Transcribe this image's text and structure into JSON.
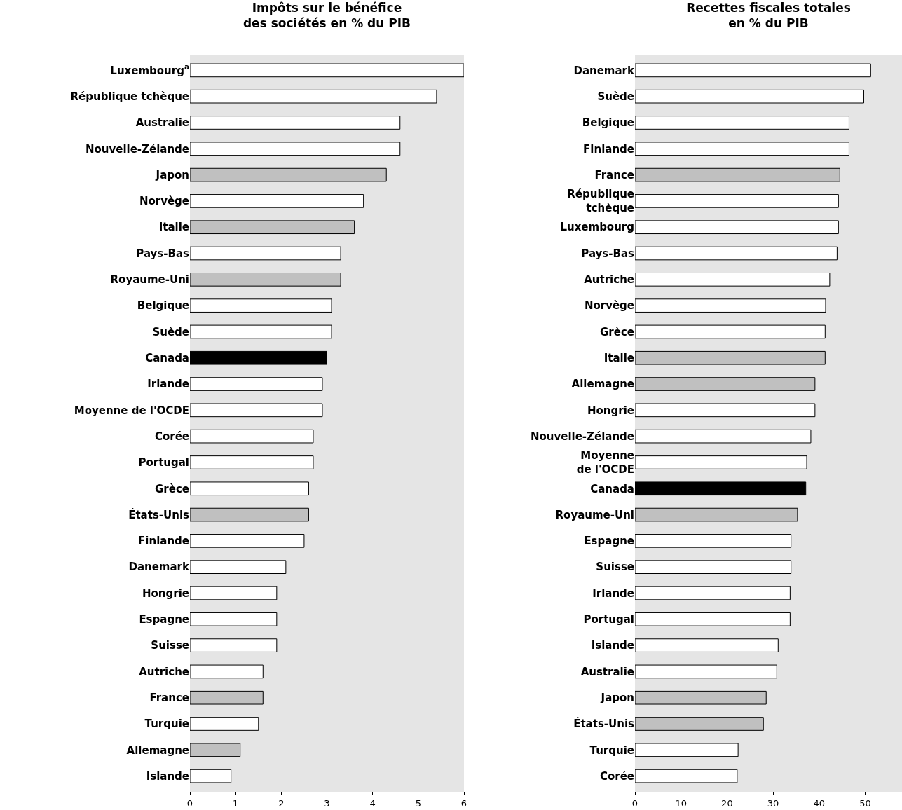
{
  "chart_data": [
    {
      "type": "bar",
      "orientation": "horizontal",
      "title": "Impôts sur le bénéfice\ndes sociétés en % du PIB",
      "categories": [
        "Luxembourg$^{a}$",
        "République tchèque",
        "Australie",
        "Nouvelle-Zélande",
        "Japon",
        "Norvège",
        "Italie",
        "Pays-Bas",
        "Royaume-Uni",
        "Belgique",
        "Suède",
        "Canada",
        "Irlande",
        "Moyenne de l'OCDE",
        "Corée",
        "Portugal",
        "Grèce",
        "États-Unis",
        "Finlande",
        "Danemark",
        "Hongrie",
        "Espagne",
        "Suisse",
        "Autriche",
        "France",
        "Turquie",
        "Allemagne",
        "Islande"
      ],
      "values": [
        6.0,
        5.4,
        4.6,
        4.6,
        4.3,
        3.8,
        3.6,
        3.3,
        3.3,
        3.1,
        3.1,
        3.0,
        2.9,
        2.9,
        2.7,
        2.7,
        2.6,
        2.6,
        2.5,
        2.1,
        1.9,
        1.9,
        1.9,
        1.6,
        1.6,
        1.5,
        1.1,
        0.9
      ],
      "colors": [
        "#ffffff",
        "#ffffff",
        "#ffffff",
        "#ffffff",
        "#c0c0c0",
        "#ffffff",
        "#c0c0c0",
        "#ffffff",
        "#c0c0c0",
        "#ffffff",
        "#ffffff",
        "#000000",
        "#ffffff",
        "#ffffff",
        "#ffffff",
        "#ffffff",
        "#ffffff",
        "#c0c0c0",
        "#ffffff",
        "#ffffff",
        "#ffffff",
        "#ffffff",
        "#ffffff",
        "#ffffff",
        "#c0c0c0",
        "#ffffff",
        "#c0c0c0",
        "#ffffff"
      ],
      "xlim": [
        0,
        6
      ],
      "xticks": [
        0,
        1,
        2,
        3,
        4,
        5,
        6
      ],
      "grid": false,
      "legend": false
    },
    {
      "type": "bar",
      "orientation": "horizontal",
      "title": "Recettes fiscales totales\nen % du PIB",
      "categories": [
        "Danemark",
        "Suède",
        "Belgique",
        "Finlande",
        "France",
        "République\ntchèque",
        "Luxembourg",
        "Pays-Bas",
        "Autriche",
        "Norvège",
        "Grèce",
        "Italie",
        "Allemagne",
        "Hongrie",
        "Nouvelle-Zélande",
        "Moyenne\nde l'OCDE",
        "Canada",
        "Royaume-Uni",
        "Espagne",
        "Suisse",
        "Irlande",
        "Portugal",
        "Islande",
        "Australie",
        "Japon",
        "États-Unis",
        "Turquie",
        "Corée"
      ],
      "values": [
        51.2,
        49.7,
        46.5,
        46.5,
        44.5,
        44.2,
        44.2,
        43.9,
        42.3,
        41.4,
        41.3,
        41.3,
        39.1,
        39.1,
        38.2,
        37.3,
        37.1,
        35.3,
        33.9,
        33.9,
        33.7,
        33.7,
        31.1,
        30.8,
        28.5,
        27.9,
        22.4,
        22.2
      ],
      "colors": [
        "#ffffff",
        "#ffffff",
        "#ffffff",
        "#ffffff",
        "#c0c0c0",
        "#ffffff",
        "#ffffff",
        "#ffffff",
        "#ffffff",
        "#ffffff",
        "#ffffff",
        "#c0c0c0",
        "#c0c0c0",
        "#ffffff",
        "#ffffff",
        "#ffffff",
        "#000000",
        "#c0c0c0",
        "#ffffff",
        "#ffffff",
        "#ffffff",
        "#ffffff",
        "#ffffff",
        "#ffffff",
        "#c0c0c0",
        "#c0c0c0",
        "#ffffff",
        "#ffffff"
      ],
      "xlim": [
        0,
        58
      ],
      "xticks": [
        0,
        10,
        20,
        30,
        40,
        50
      ],
      "grid": false,
      "legend": false
    }
  ]
}
